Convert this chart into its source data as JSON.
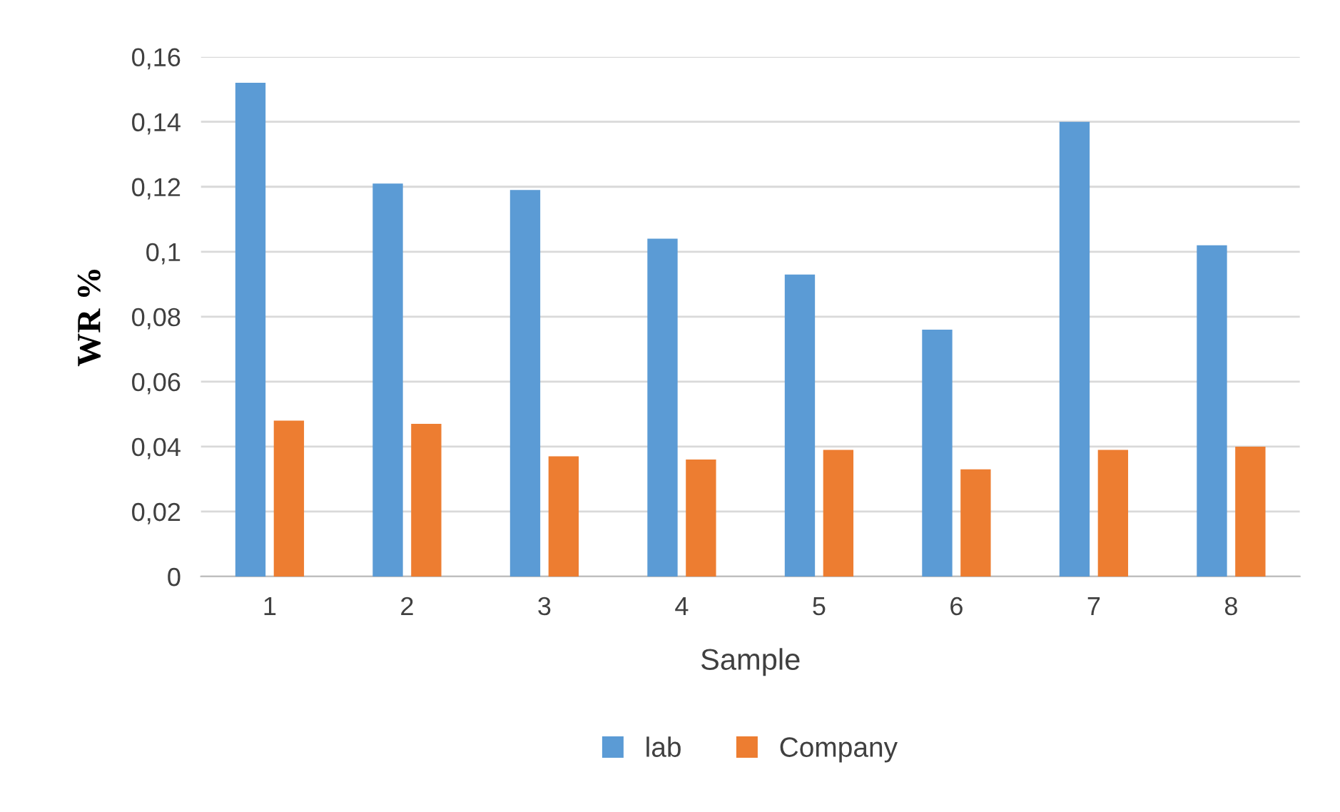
{
  "chart_data": {
    "type": "bar",
    "xlabel": "Sample",
    "ylabel": "WR %",
    "categories": [
      "1",
      "2",
      "3",
      "4",
      "5",
      "6",
      "7",
      "8"
    ],
    "series": [
      {
        "name": "lab",
        "color": "#5b9bd5",
        "values": [
          0.152,
          0.121,
          0.119,
          0.104,
          0.093,
          0.076,
          0.14,
          0.102
        ]
      },
      {
        "name": "Company",
        "color": "#ed7d31",
        "values": [
          0.048,
          0.047,
          0.037,
          0.036,
          0.039,
          0.033,
          0.039,
          0.04
        ]
      }
    ],
    "ylim": [
      0,
      0.16
    ],
    "yticks": [
      {
        "value": 0,
        "label": "0"
      },
      {
        "value": 0.02,
        "label": "0,02"
      },
      {
        "value": 0.04,
        "label": "0,04"
      },
      {
        "value": 0.06,
        "label": "0,06"
      },
      {
        "value": 0.08,
        "label": "0,08"
      },
      {
        "value": 0.1,
        "label": "0,1"
      },
      {
        "value": 0.12,
        "label": "0,12"
      },
      {
        "value": 0.14,
        "label": "0,14"
      },
      {
        "value": 0.16,
        "label": "0,16"
      }
    ],
    "grid": "y",
    "legend": "bottom"
  }
}
